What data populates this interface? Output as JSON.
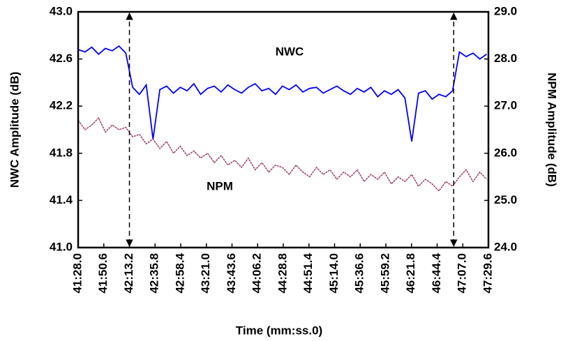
{
  "chart_data": {
    "type": "line",
    "x": [
      2488,
      2494,
      2500,
      2506,
      2512,
      2518,
      2524,
      2530,
      2536,
      2542,
      2548,
      2554,
      2560,
      2566,
      2572,
      2578,
      2584,
      2590,
      2596,
      2602,
      2608,
      2614,
      2620,
      2626,
      2632,
      2638,
      2644,
      2650,
      2656,
      2662,
      2668,
      2674,
      2680,
      2686,
      2692,
      2698,
      2704,
      2710,
      2716,
      2722,
      2728,
      2734,
      2740,
      2746,
      2752,
      2758,
      2764,
      2770,
      2776,
      2782,
      2788,
      2794,
      2800,
      2806,
      2812,
      2818,
      2824,
      2830,
      2836,
      2842,
      2848
    ],
    "series": [
      {
        "name": "NWC",
        "color": "#0000ff",
        "axis": "y",
        "values": [
          42.68,
          42.66,
          42.7,
          42.64,
          42.69,
          42.67,
          42.71,
          42.65,
          42.36,
          42.3,
          42.38,
          41.92,
          42.34,
          42.37,
          42.31,
          42.36,
          42.33,
          42.39,
          42.3,
          42.35,
          42.37,
          42.32,
          42.38,
          42.34,
          42.31,
          42.36,
          42.39,
          42.33,
          42.35,
          42.3,
          42.37,
          42.34,
          42.38,
          42.32,
          42.35,
          42.36,
          42.31,
          42.34,
          42.37,
          42.33,
          42.3,
          42.35,
          42.32,
          42.36,
          42.28,
          42.33,
          42.3,
          42.34,
          42.27,
          41.9,
          42.31,
          42.33,
          42.26,
          42.3,
          42.28,
          42.33,
          42.66,
          42.62,
          42.65,
          42.6,
          42.64
        ]
      },
      {
        "name": "NPM",
        "color": "#a03c6e",
        "axis": "y2",
        "values": [
          26.7,
          26.5,
          26.6,
          26.75,
          26.45,
          26.6,
          26.5,
          26.55,
          26.35,
          26.4,
          26.2,
          26.3,
          26.1,
          26.25,
          26.0,
          26.15,
          25.95,
          26.05,
          25.9,
          26.0,
          25.8,
          25.95,
          25.75,
          25.85,
          25.7,
          25.9,
          25.65,
          25.8,
          25.6,
          25.75,
          25.7,
          25.55,
          25.75,
          25.6,
          25.5,
          25.7,
          25.55,
          25.65,
          25.45,
          25.6,
          25.5,
          25.65,
          25.4,
          25.55,
          25.45,
          25.6,
          25.35,
          25.5,
          25.4,
          25.55,
          25.3,
          25.45,
          25.35,
          25.2,
          25.4,
          25.3,
          25.5,
          25.65,
          25.4,
          25.6,
          25.45
        ]
      }
    ],
    "markers": [
      2533.2,
      2819
    ],
    "xlabel": "Time (mm:ss.0)",
    "ylabel": "NWC Amplitude (dB)",
    "y2label": "NPM Amplitude (dB)",
    "xlim": [
      2488,
      2849.6
    ],
    "xticks": [
      {
        "value": 2488,
        "label": "41:28.0"
      },
      {
        "value": 2510.6,
        "label": "41:50.6"
      },
      {
        "value": 2533.2,
        "label": "42:13.2"
      },
      {
        "value": 2555.8,
        "label": "42:35.8"
      },
      {
        "value": 2578.4,
        "label": "42:58.4"
      },
      {
        "value": 2601,
        "label": "43:21.0"
      },
      {
        "value": 2623.6,
        "label": "43:43.6"
      },
      {
        "value": 2646.2,
        "label": "44:06.2"
      },
      {
        "value": 2668.8,
        "label": "44:28.8"
      },
      {
        "value": 2691.4,
        "label": "44:51.4"
      },
      {
        "value": 2714,
        "label": "45:14.0"
      },
      {
        "value": 2736.6,
        "label": "45:36.6"
      },
      {
        "value": 2759.2,
        "label": "45:59.2"
      },
      {
        "value": 2781.8,
        "label": "46:21.8"
      },
      {
        "value": 2804.4,
        "label": "46:44.4"
      },
      {
        "value": 2827,
        "label": "47:07.0"
      },
      {
        "value": 2849.6,
        "label": "47:29.6"
      }
    ],
    "ylim": [
      41,
      43
    ],
    "yticks": [
      {
        "value": 41,
        "label": "41.0"
      },
      41.4,
      41.8,
      42.2,
      42.6,
      {
        "value": 43,
        "label": "43.0"
      }
    ],
    "y2lim": [
      24,
      29
    ],
    "y2ticks": [
      {
        "value": 24,
        "label": "24.0"
      },
      {
        "value": 25,
        "label": "25.0"
      },
      {
        "value": 26,
        "label": "26.0"
      },
      {
        "value": 27,
        "label": "27.0"
      },
      {
        "value": 28,
        "label": "28.0"
      },
      {
        "value": 29,
        "label": "29.0"
      }
    ]
  }
}
